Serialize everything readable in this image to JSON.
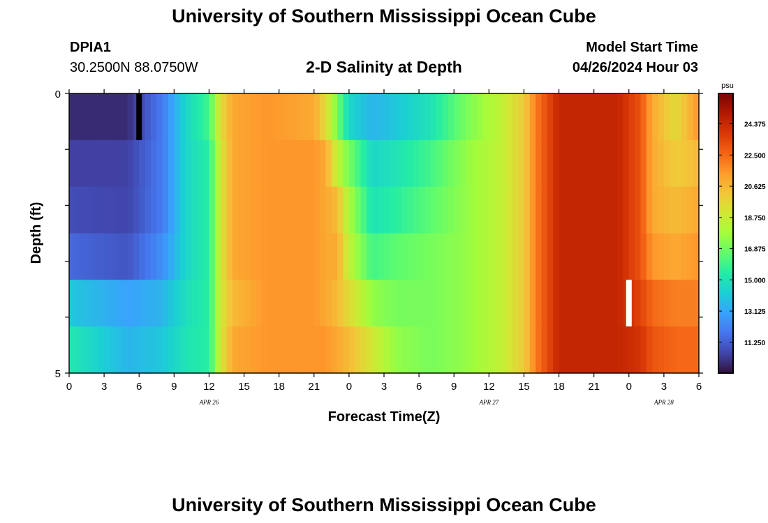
{
  "header": {
    "main_title": "University of Southern Mississippi Ocean Cube",
    "station_id": "DPIA1",
    "station_coords": "30.2500N  88.0750W",
    "model_start_label": "Model Start Time",
    "model_start_value": "04/26/2024 Hour 03"
  },
  "footer": {
    "title": "University of Southern Mississippi Ocean Cube"
  },
  "chart_data": {
    "type": "heatmap",
    "title": "2-D Salinity at Depth",
    "xlabel": "Forecast Time(Z)",
    "ylabel": "Depth (ft)",
    "x_tick_labels": [
      "0",
      "3",
      "6",
      "9",
      "12",
      "15",
      "18",
      "21",
      "0",
      "3",
      "6",
      "9",
      "12",
      "15",
      "18",
      "21",
      "0",
      "3",
      "6"
    ],
    "x_hours": [
      0,
      3,
      6,
      9,
      12,
      15,
      18,
      21,
      24,
      27,
      30,
      33,
      36,
      39,
      42,
      45,
      48,
      51,
      54
    ],
    "date_labels": [
      {
        "label": "APR 26",
        "hour": 12
      },
      {
        "label": "APR 27",
        "hour": 36
      },
      {
        "label": "APR 28",
        "hour": 51
      }
    ],
    "y_tick_labels": [
      "0",
      "5"
    ],
    "ylim": [
      0,
      5
    ],
    "xlim_hours": [
      0,
      54
    ],
    "colorbar": {
      "unit": "psu",
      "ticks": [
        "24.375",
        "22.500",
        "20.625",
        "18.750",
        "16.875",
        "15.000",
        "13.125",
        "11.250"
      ],
      "range": [
        9.4,
        26.2
      ],
      "colors": [
        "#30123b",
        "#4145ab",
        "#4675ed",
        "#39a2fc",
        "#1bcfd4",
        "#24eca6",
        "#61fc6c",
        "#a4fc3b",
        "#d1e834",
        "#f3c63a",
        "#fe9b2d",
        "#f36315",
        "#d93806",
        "#b11901",
        "#7a0403"
      ]
    },
    "depth_layers": [
      0,
      1,
      2,
      3,
      4,
      5
    ],
    "hour_step": 0.5,
    "key_points": [
      {
        "hour": 0,
        "values": [
          10.0,
          10.5,
          10.8,
          11.5,
          14.0,
          15.2
        ]
      },
      {
        "hour": 5,
        "values": [
          10.0,
          10.5,
          10.6,
          11.0,
          13.0,
          13.5
        ]
      },
      {
        "hour": 8,
        "values": [
          12.0,
          12.0,
          12.0,
          12.5,
          13.5,
          14.0
        ]
      },
      {
        "hour": 10,
        "values": [
          14.5,
          14.5,
          14.5,
          14.5,
          14.8,
          15.0
        ]
      },
      {
        "hour": 12,
        "values": [
          16.0,
          15.5,
          15.5,
          15.5,
          15.5,
          15.5
        ]
      },
      {
        "hour": 13,
        "values": [
          19.5,
          19.0,
          19.0,
          19.0,
          19.0,
          19.0
        ]
      },
      {
        "hour": 14,
        "values": [
          21.0,
          21.0,
          21.0,
          21.0,
          20.5,
          21.0
        ]
      },
      {
        "hour": 17,
        "values": [
          21.5,
          21.5,
          21.5,
          21.5,
          21.5,
          21.5
        ]
      },
      {
        "hour": 21,
        "values": [
          21.0,
          21.5,
          21.5,
          21.5,
          21.5,
          21.5
        ]
      },
      {
        "hour": 22,
        "values": [
          19.5,
          21.0,
          21.0,
          21.0,
          21.0,
          21.5
        ]
      },
      {
        "hour": 23,
        "values": [
          17.0,
          18.5,
          20.5,
          21.0,
          20.5,
          21.0
        ]
      },
      {
        "hour": 24,
        "values": [
          14.5,
          17.0,
          18.0,
          18.5,
          19.5,
          20.5
        ]
      },
      {
        "hour": 26,
        "values": [
          13.5,
          14.5,
          15.0,
          16.0,
          17.5,
          19.0
        ]
      },
      {
        "hour": 28,
        "values": [
          14.0,
          15.0,
          15.5,
          16.5,
          17.0,
          17.5
        ]
      },
      {
        "hour": 31,
        "values": [
          15.0,
          16.0,
          16.5,
          17.0,
          17.0,
          17.0
        ]
      },
      {
        "hour": 34,
        "values": [
          17.0,
          17.5,
          17.5,
          17.5,
          17.5,
          17.5
        ]
      },
      {
        "hour": 37,
        "values": [
          18.5,
          18.5,
          18.5,
          18.5,
          18.5,
          18.5
        ]
      },
      {
        "hour": 39,
        "values": [
          20.0,
          20.0,
          20.0,
          20.0,
          20.0,
          20.0
        ]
      },
      {
        "hour": 40,
        "values": [
          22.0,
          22.0,
          22.0,
          22.0,
          22.0,
          22.0
        ]
      },
      {
        "hour": 42,
        "values": [
          24.5,
          24.5,
          24.5,
          24.5,
          24.5,
          24.5
        ]
      },
      {
        "hour": 47,
        "values": [
          24.5,
          24.5,
          24.5,
          24.5,
          24.5,
          24.5
        ]
      },
      {
        "hour": 49,
        "values": [
          23.0,
          23.0,
          23.0,
          23.0,
          23.5,
          24.0
        ]
      },
      {
        "hour": 50,
        "values": [
          21.0,
          21.0,
          21.0,
          21.5,
          22.5,
          23.0
        ]
      },
      {
        "hour": 52,
        "values": [
          19.5,
          20.0,
          20.5,
          21.0,
          22.0,
          22.5
        ]
      },
      {
        "hour": 54,
        "values": [
          21.5,
          20.5,
          21.0,
          21.5,
          22.0,
          22.5
        ]
      }
    ],
    "missing_cells": [
      {
        "hour": 6,
        "layer": 0,
        "color": "#000000"
      },
      {
        "hour": 48,
        "layer": 4,
        "color": "#ffffff"
      }
    ]
  }
}
